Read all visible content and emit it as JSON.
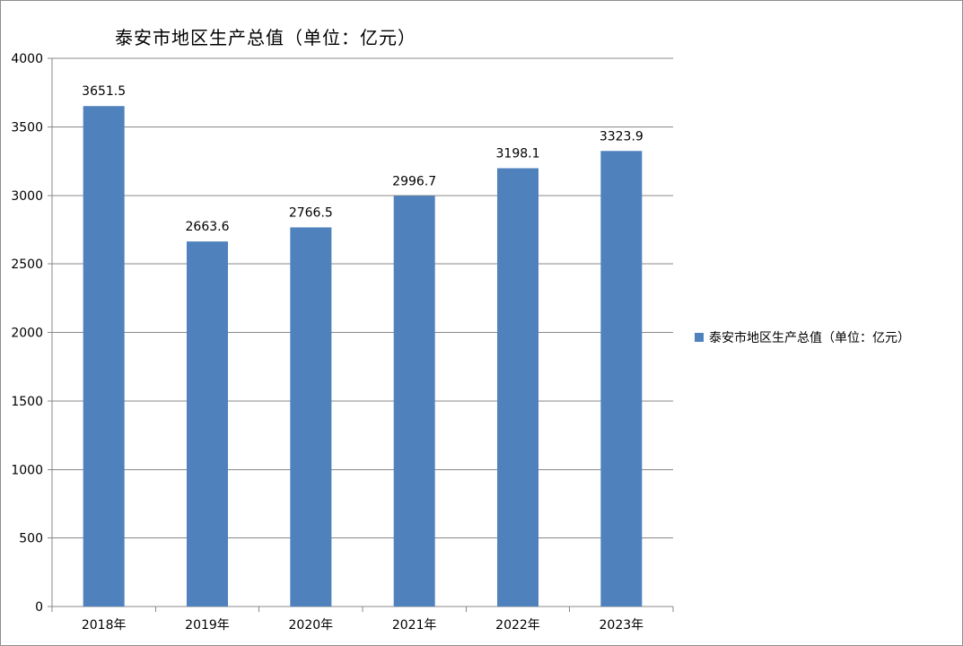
{
  "chart_data": {
    "type": "bar",
    "title": "泰安市地区生产总值（单位：亿元）",
    "categories": [
      "2018年",
      "2019年",
      "2020年",
      "2021年",
      "2022年",
      "2023年"
    ],
    "series": [
      {
        "name": "泰安市地区生产总值（单位：亿元）",
        "values": [
          3651.5,
          2663.6,
          2766.5,
          2996.7,
          3198.1,
          3323.9
        ],
        "labels": [
          "3651.5",
          "2663.6",
          "2766.5",
          "2996.7",
          "3198.1",
          "3323.9"
        ]
      }
    ],
    "xlabel": "",
    "ylabel": "",
    "ylim": [
      0,
      4000
    ],
    "yticks": [
      "0",
      "500",
      "1000",
      "1500",
      "2000",
      "2500",
      "3000",
      "3500",
      "4000"
    ],
    "grid": true,
    "legend_position": "right",
    "colors": {
      "bar": "#4f81bd",
      "grid": "#888888",
      "axis": "#888888"
    }
  }
}
